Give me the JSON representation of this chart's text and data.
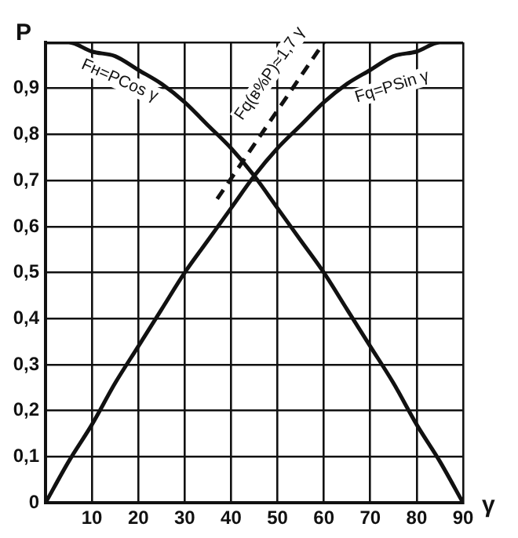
{
  "chart_data": {
    "type": "line",
    "xlabel": "γ",
    "ylabel": "P",
    "x": [
      0,
      5,
      10,
      15,
      20,
      25,
      30,
      35,
      40,
      45,
      50,
      55,
      60,
      65,
      70,
      75,
      80,
      85,
      90
    ],
    "series": [
      {
        "name": "Fн=PCos γ",
        "color": "#111111",
        "values": [
          1,
          1,
          0.98,
          0.97,
          0.94,
          0.91,
          0.87,
          0.82,
          0.77,
          0.71,
          0.64,
          0.57,
          0.5,
          0.42,
          0.34,
          0.26,
          0.17,
          0.09,
          0
        ]
      },
      {
        "name": "Fq=PSin γ",
        "color": "#111111",
        "values": [
          0,
          0.09,
          0.17,
          0.26,
          0.34,
          0.42,
          0.5,
          0.57,
          0.64,
          0.71,
          0.77,
          0.82,
          0.87,
          0.91,
          0.94,
          0.97,
          0.98,
          1,
          1
        ]
      },
      {
        "name": "Fq(в%P)≈1,7 γ",
        "color": "#111111",
        "x": [
          37,
          60
        ],
        "values": [
          0.66,
          1
        ],
        "line_style": "dashed"
      }
    ],
    "xlim": [
      0,
      90
    ],
    "xticks": [
      {
        "value": 0,
        "label": null
      },
      10,
      20,
      30,
      40,
      50,
      60,
      70,
      80,
      90
    ],
    "ylim": [
      0,
      1
    ],
    "yticks": [
      0,
      {
        "value": 0.1,
        "label": "0,1"
      },
      {
        "value": 0.2,
        "label": "0,2"
      },
      {
        "value": 0.3,
        "label": "0,3"
      },
      {
        "value": 0.4,
        "label": "0,4"
      },
      {
        "value": 0.5,
        "label": "0,5"
      },
      {
        "value": 0.6,
        "label": "0,6"
      },
      {
        "value": 0.7,
        "label": "0,7"
      },
      {
        "value": 0.8,
        "label": "0,8"
      },
      {
        "value": 0.9,
        "label": "0,9"
      },
      {
        "value": 1,
        "label": null
      }
    ],
    "grid": true,
    "marker": "none",
    "line_style": "solid",
    "legend": false
  }
}
